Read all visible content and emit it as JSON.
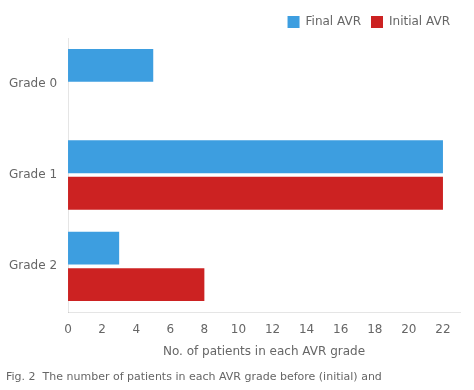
{
  "chart_data": {
    "type": "bar",
    "orientation": "horizontal",
    "categories": [
      "Grade 0",
      "Grade 1",
      "Grade 2"
    ],
    "series": [
      {
        "name": "Final AVR",
        "color": "#3D9EE0",
        "values": [
          5,
          22,
          3
        ]
      },
      {
        "name": "Initial AVR",
        "color": "#CC2222",
        "values": [
          0,
          22,
          8
        ]
      }
    ],
    "xlabel": "No. of patients in each AVR grade",
    "xlim": [
      0,
      23
    ],
    "xticks": [
      0,
      2,
      4,
      6,
      8,
      10,
      12,
      14,
      16,
      18,
      20,
      22
    ],
    "legend": "upper right",
    "grid": false,
    "caption": "Fig. 2  The number of patients in each AVR grade before (initial) and"
  }
}
